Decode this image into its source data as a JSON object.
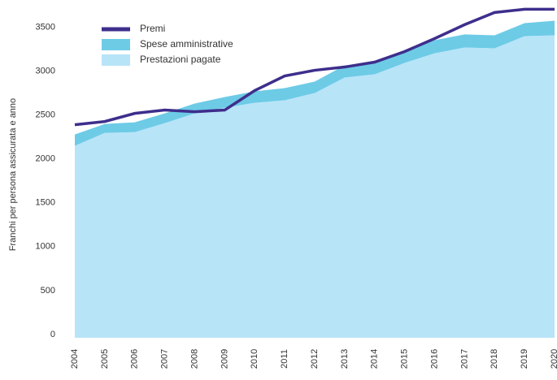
{
  "chart_data": {
    "type": "area",
    "ylabel": "Franchi per persona assicurata e anno",
    "categories": [
      "2004",
      "2005",
      "2006",
      "2007",
      "2008",
      "2009",
      "2010",
      "2011",
      "2012",
      "2013",
      "2014",
      "2015",
      "2016",
      "2017",
      "2018",
      "2019",
      "2020"
    ],
    "series": [
      {
        "name": "Premi",
        "type": "line",
        "color": "#3e2e8c",
        "values": [
          2426,
          2463,
          2555,
          2593,
          2574,
          2593,
          2815,
          2981,
          3046,
          3083,
          3139,
          3259,
          3407,
          3565,
          3704,
          3741,
          3741
        ]
      },
      {
        "name": "Spese amministrative",
        "type": "area",
        "color": "#6dcbe6",
        "values": [
          130,
          102,
          112,
          111,
          112,
          121,
          130,
          139,
          130,
          139,
          130,
          139,
          149,
          149,
          148,
          148,
          167
        ]
      },
      {
        "name": "Prestazioni pagate",
        "type": "area",
        "color": "#b8e4f8",
        "values": [
          2185,
          2333,
          2342,
          2444,
          2555,
          2620,
          2676,
          2704,
          2787,
          2963,
          3000,
          3130,
          3240,
          3305,
          3296,
          3435,
          3444
        ]
      }
    ],
    "ylim": [
      0,
      3800
    ],
    "yticks": [
      0,
      500,
      1000,
      1500,
      2000,
      2500,
      3000,
      3500
    ],
    "grid": false,
    "legend": "upper left"
  }
}
